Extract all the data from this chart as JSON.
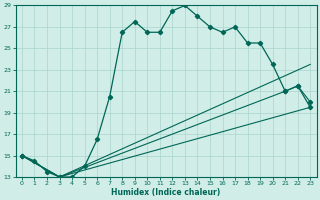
{
  "xlabel": "Humidex (Indice chaleur)",
  "bg_color": "#d0ede8",
  "grid_color": "#aad4cc",
  "line_color": "#006655",
  "xlim": [
    -0.5,
    23.5
  ],
  "ylim": [
    13,
    29
  ],
  "yticks": [
    13,
    15,
    17,
    19,
    21,
    23,
    25,
    27,
    29
  ],
  "xticks": [
    0,
    1,
    2,
    3,
    4,
    5,
    6,
    7,
    8,
    9,
    10,
    11,
    12,
    13,
    14,
    15,
    16,
    17,
    18,
    19,
    20,
    21,
    22,
    23
  ],
  "series1_x": [
    0,
    1,
    2,
    3,
    4,
    5,
    6,
    7,
    8,
    9,
    10,
    11,
    12,
    13,
    14,
    15,
    16,
    17,
    18,
    19,
    20,
    21,
    22,
    23
  ],
  "series1_y": [
    15.0,
    14.5,
    13.5,
    13.0,
    13.0,
    14.0,
    16.5,
    20.5,
    26.5,
    27.5,
    26.5,
    26.5,
    28.5,
    29.0,
    28.0,
    27.0,
    26.5,
    27.0,
    25.5,
    25.5,
    23.5,
    21.0,
    21.5,
    19.5
  ],
  "series2_x": [
    0,
    3,
    23
  ],
  "series2_y": [
    15.0,
    13.0,
    23.5
  ],
  "series3_x": [
    0,
    3,
    21,
    22,
    23
  ],
  "series3_y": [
    15.0,
    13.0,
    21.0,
    21.5,
    20.0
  ],
  "series4_x": [
    0,
    3,
    23
  ],
  "series4_y": [
    15.0,
    13.0,
    19.5
  ]
}
